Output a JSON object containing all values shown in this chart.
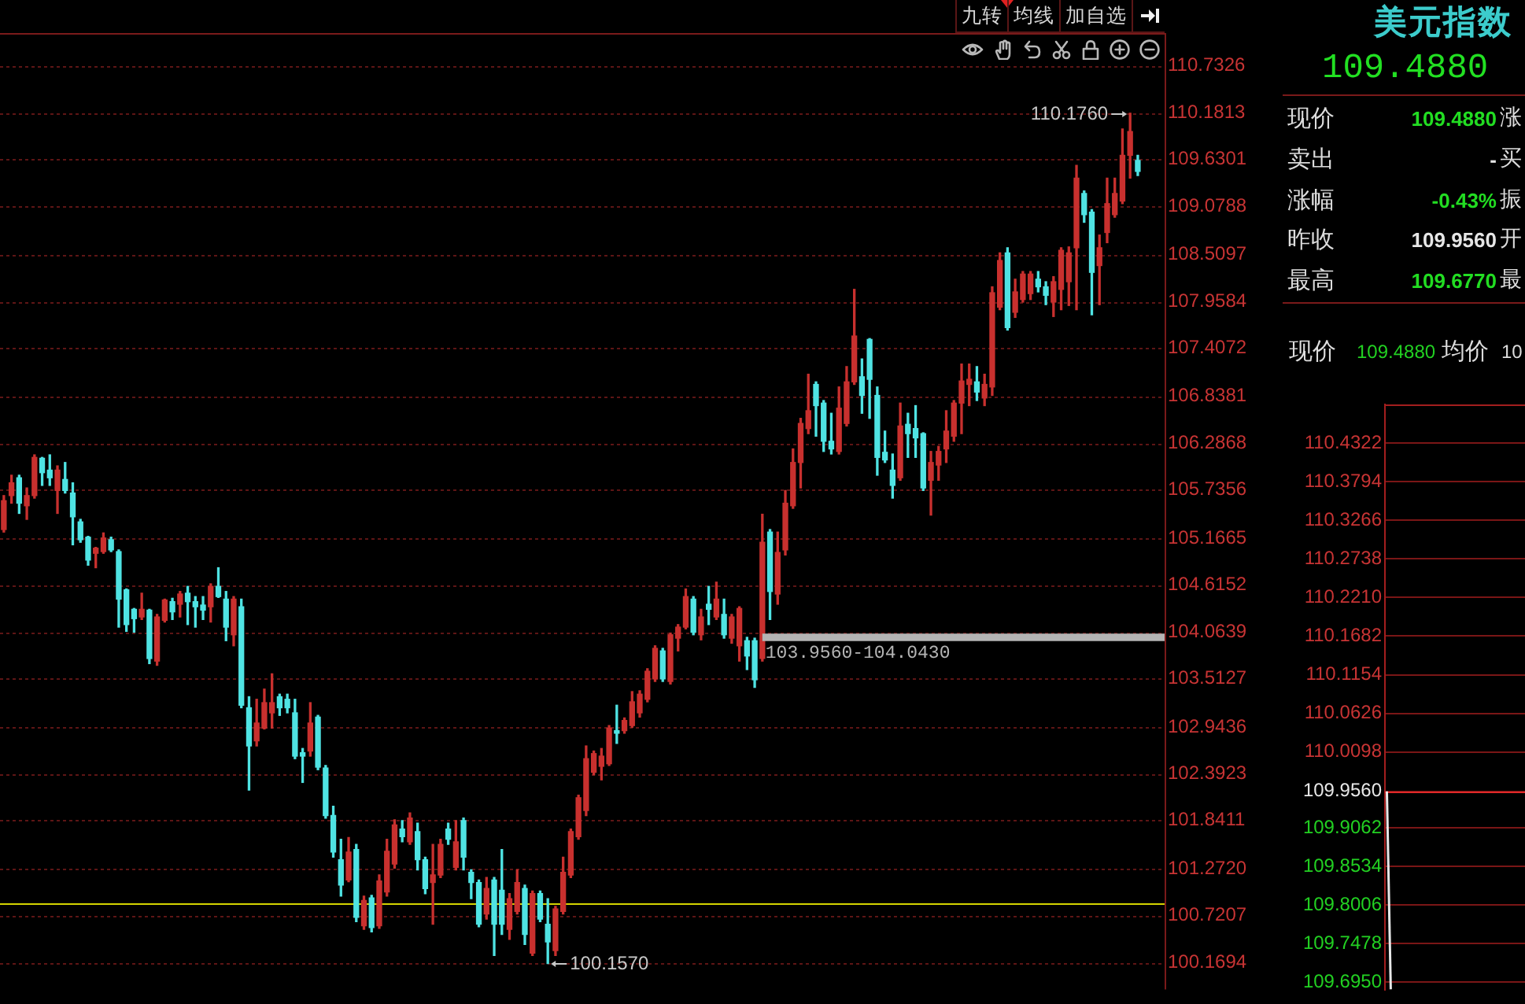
{
  "chart_data": [
    {
      "type": "candlestick",
      "categories": [
        null,
        null,
        null,
        null,
        null,
        null,
        null,
        null,
        null,
        null,
        null,
        null,
        null,
        null,
        null,
        null,
        null,
        null,
        null,
        null,
        null,
        null,
        null,
        null,
        null,
        null,
        null,
        null,
        null,
        null,
        null,
        null,
        null,
        null,
        null,
        null,
        null,
        null,
        null,
        null,
        null,
        null,
        null,
        null,
        null,
        null,
        null,
        null,
        null,
        null,
        null,
        null,
        null,
        null,
        null,
        null,
        null,
        null,
        null,
        null,
        null,
        null,
        null,
        null,
        null,
        null,
        null,
        null,
        null,
        null,
        null,
        null,
        null,
        null,
        null,
        null,
        null,
        null,
        null,
        null,
        null,
        null,
        null,
        null,
        null,
        null,
        null,
        null,
        null,
        null,
        null,
        null,
        null,
        null,
        null,
        null,
        null,
        null,
        null,
        null,
        null,
        null,
        null,
        null,
        null,
        null,
        null,
        null,
        null,
        null,
        null,
        null,
        null,
        null,
        null,
        null,
        null,
        null,
        null,
        null,
        null,
        null,
        null,
        null,
        null,
        null,
        null,
        null,
        null,
        null,
        null,
        null,
        null,
        null,
        null,
        null,
        null,
        null,
        null,
        null,
        null,
        null,
        null,
        null,
        null,
        null,
        null,
        null,
        null,
        null,
        null,
        null
      ],
      "ohlc": [
        [
          105.27,
          105.67,
          105.24,
          105.61
        ],
        [
          105.67,
          105.91,
          105.58,
          105.82
        ],
        [
          105.88,
          105.91,
          105.46,
          105.58
        ],
        [
          105.55,
          105.76,
          105.39,
          105.67
        ],
        [
          105.67,
          106.15,
          105.64,
          106.12
        ],
        [
          106.11,
          106.12,
          105.79,
          105.94
        ],
        [
          105.97,
          106.15,
          105.79,
          105.88
        ],
        [
          105.73,
          106.02,
          105.46,
          105.97
        ],
        [
          105.86,
          106.06,
          105.7,
          105.73
        ],
        [
          105.7,
          105.82,
          105.09,
          105.42
        ],
        [
          105.36,
          105.39,
          105.12,
          105.15
        ],
        [
          105.18,
          105.19,
          104.85,
          104.91
        ],
        [
          104.99,
          105.06,
          104.82,
          105.05
        ],
        [
          105.01,
          105.23,
          104.99,
          105.17
        ],
        [
          105.15,
          105.18,
          105.01,
          105.03
        ],
        [
          105.01,
          105.03,
          104.12,
          104.45
        ],
        [
          104.56,
          104.57,
          104.07,
          104.15
        ],
        [
          104.33,
          104.34,
          104.06,
          104.22
        ],
        [
          104.24,
          104.52,
          104.21,
          104.33
        ],
        [
          104.32,
          104.33,
          103.69,
          103.75
        ],
        [
          103.72,
          104.27,
          103.67,
          104.24
        ],
        [
          104.2,
          104.45,
          104.18,
          104.44
        ],
        [
          104.42,
          104.46,
          104.21,
          104.3
        ],
        [
          104.39,
          104.54,
          104.24,
          104.51
        ],
        [
          104.52,
          104.6,
          104.15,
          104.42
        ],
        [
          104.42,
          104.48,
          104.12,
          104.36
        ],
        [
          104.38,
          104.48,
          104.21,
          104.32
        ],
        [
          104.36,
          104.63,
          104.18,
          104.6
        ],
        [
          104.6,
          104.82,
          104.47,
          104.48
        ],
        [
          104.45,
          104.54,
          103.96,
          104.12
        ],
        [
          104.03,
          104.48,
          103.9,
          104.45
        ],
        [
          104.36,
          104.45,
          103.17,
          103.2
        ],
        [
          103.17,
          103.3,
          102.2,
          102.72
        ],
        [
          102.78,
          103.27,
          102.72,
          102.99
        ],
        [
          102.93,
          103.39,
          102.92,
          103.23
        ],
        [
          103.11,
          103.57,
          102.93,
          103.23
        ],
        [
          103.3,
          103.33,
          103.08,
          103.17
        ],
        [
          103.27,
          103.33,
          103.11,
          103.17
        ],
        [
          103.11,
          103.27,
          102.57,
          102.6
        ],
        [
          102.64,
          102.69,
          102.29,
          102.6
        ],
        [
          102.66,
          103.23,
          102.6,
          102.99
        ],
        [
          103.06,
          103.08,
          102.44,
          102.47
        ],
        [
          102.46,
          102.49,
          101.87,
          101.9
        ],
        [
          101.9,
          102.01,
          101.41,
          101.47
        ],
        [
          101.38,
          101.62,
          100.95,
          101.08
        ],
        [
          101.14,
          101.64,
          101.12,
          101.47
        ],
        [
          101.5,
          101.56,
          100.65,
          100.7
        ],
        [
          100.6,
          100.95,
          100.56,
          100.9
        ],
        [
          100.93,
          100.96,
          100.53,
          100.58
        ],
        [
          100.6,
          101.2,
          100.57,
          101.13
        ],
        [
          101.0,
          101.62,
          100.95,
          101.48
        ],
        [
          101.33,
          101.85,
          101.28,
          101.79
        ],
        [
          101.74,
          101.84,
          101.59,
          101.65
        ],
        [
          101.59,
          101.93,
          101.56,
          101.87
        ],
        [
          101.71,
          101.81,
          101.26,
          101.38
        ],
        [
          101.38,
          101.41,
          100.98,
          101.04
        ],
        [
          101.11,
          101.56,
          100.62,
          101.2
        ],
        [
          101.2,
          101.62,
          101.17,
          101.56
        ],
        [
          101.74,
          101.81,
          101.56,
          101.62
        ],
        [
          101.29,
          101.84,
          101.26,
          101.59
        ],
        [
          101.84,
          101.87,
          101.26,
          101.41
        ],
        [
          101.23,
          101.26,
          100.92,
          101.11
        ],
        [
          101.11,
          101.14,
          100.59,
          100.62
        ],
        [
          100.74,
          101.17,
          100.68,
          101.04
        ],
        [
          101.14,
          101.17,
          100.25,
          100.62
        ],
        [
          101.02,
          101.5,
          100.5,
          100.62
        ],
        [
          100.56,
          100.98,
          100.44,
          100.92
        ],
        [
          100.77,
          101.26,
          100.74,
          101.11
        ],
        [
          101.04,
          101.08,
          100.38,
          100.5
        ],
        [
          100.28,
          101.01,
          100.25,
          100.98
        ],
        [
          100.98,
          101.01,
          100.65,
          100.68
        ],
        [
          100.62,
          100.92,
          100.157,
          100.41
        ],
        [
          100.31,
          100.83,
          100.25,
          100.8
        ],
        [
          100.77,
          101.41,
          100.74,
          101.23
        ],
        [
          101.2,
          101.74,
          101.17,
          101.71
        ],
        [
          101.65,
          102.14,
          101.62,
          102.11
        ],
        [
          101.96,
          102.72,
          101.9,
          102.57
        ],
        [
          102.41,
          102.66,
          102.38,
          102.63
        ],
        [
          102.48,
          102.69,
          102.32,
          102.6
        ],
        [
          102.51,
          102.96,
          102.49,
          102.93
        ],
        [
          102.9,
          103.2,
          102.75,
          102.87
        ],
        [
          102.9,
          103.05,
          102.87,
          103.02
        ],
        [
          102.96,
          103.36,
          102.94,
          103.24
        ],
        [
          103.11,
          103.37,
          103.06,
          103.33
        ],
        [
          103.27,
          103.63,
          103.24,
          103.6
        ],
        [
          103.51,
          103.9,
          103.48,
          103.87
        ],
        [
          103.84,
          103.87,
          103.48,
          103.51
        ],
        [
          103.48,
          104.05,
          103.45,
          104.03
        ],
        [
          103.99,
          104.15,
          103.84,
          104.12
        ],
        [
          104.12,
          104.57,
          104.1,
          104.48
        ],
        [
          104.45,
          104.48,
          104.03,
          104.06
        ],
        [
          104.03,
          104.33,
          103.97,
          104.24
        ],
        [
          104.39,
          104.6,
          104.15,
          104.33
        ],
        [
          104.24,
          104.65,
          104.21,
          104.45
        ],
        [
          104.27,
          104.45,
          103.99,
          104.03
        ],
        [
          103.99,
          104.27,
          103.93,
          104.24
        ],
        [
          103.9,
          104.36,
          103.72,
          104.34
        ],
        [
          103.96,
          104.0,
          103.62,
          103.78
        ],
        [
          103.96,
          103.99,
          103.41,
          103.5
        ],
        [
          103.75,
          105.45,
          103.72,
          105.12
        ],
        [
          105.24,
          105.27,
          104.21,
          104.54
        ],
        [
          104.51,
          105.24,
          104.39,
          105.0
        ],
        [
          105.03,
          105.73,
          104.97,
          105.58
        ],
        [
          105.55,
          106.22,
          105.52,
          106.06
        ],
        [
          106.06,
          106.58,
          105.76,
          106.52
        ],
        [
          106.46,
          107.1,
          106.4,
          106.67
        ],
        [
          106.98,
          107.01,
          106.37,
          106.73
        ],
        [
          106.76,
          106.79,
          106.19,
          106.31
        ],
        [
          106.31,
          106.64,
          106.16,
          106.22
        ],
        [
          106.19,
          106.95,
          106.16,
          106.7
        ],
        [
          106.52,
          107.19,
          106.49,
          107.01
        ],
        [
          107.01,
          108.1,
          106.98,
          107.55
        ],
        [
          107.07,
          107.28,
          106.64,
          106.85
        ],
        [
          107.51,
          107.52,
          106.58,
          107.04
        ],
        [
          106.85,
          106.95,
          105.91,
          106.12
        ],
        [
          106.18,
          106.43,
          106.06,
          106.09
        ],
        [
          105.97,
          106.16,
          105.64,
          105.79
        ],
        [
          105.88,
          106.76,
          105.85,
          106.49
        ],
        [
          106.51,
          106.64,
          106.12,
          106.4
        ],
        [
          106.46,
          106.73,
          106.12,
          106.35
        ],
        [
          106.4,
          106.41,
          105.73,
          105.76
        ],
        [
          105.85,
          106.19,
          105.44,
          106.06
        ],
        [
          106.03,
          106.25,
          105.85,
          106.19
        ],
        [
          106.22,
          106.67,
          106.06,
          106.43
        ],
        [
          106.37,
          106.79,
          106.31,
          106.76
        ],
        [
          106.76,
          107.22,
          106.4,
          107.02
        ],
        [
          106.98,
          107.22,
          106.73,
          107.04
        ],
        [
          107.01,
          107.19,
          106.79,
          106.89
        ],
        [
          106.82,
          107.1,
          106.73,
          106.98
        ],
        [
          106.95,
          108.13,
          106.85,
          108.06
        ],
        [
          107.89,
          108.53,
          107.86,
          108.44
        ],
        [
          108.53,
          108.59,
          107.62,
          107.65
        ],
        [
          107.83,
          108.22,
          107.77,
          108.07
        ],
        [
          107.98,
          108.31,
          107.95,
          108.28
        ],
        [
          108.05,
          108.31,
          107.98,
          108.28
        ],
        [
          108.22,
          108.31,
          108.07,
          108.13
        ],
        [
          108.13,
          108.19,
          107.92,
          108.03
        ],
        [
          107.95,
          108.25,
          107.78,
          108.19
        ],
        [
          108.1,
          108.59,
          107.86,
          108.56
        ],
        [
          108.19,
          108.6,
          107.91,
          108.53
        ],
        [
          108.59,
          109.56,
          107.86,
          109.41
        ],
        [
          109.23,
          109.26,
          108.89,
          108.98
        ],
        [
          109.01,
          109.04,
          107.8,
          108.3
        ],
        [
          108.38,
          108.74,
          107.92,
          108.59
        ],
        [
          108.77,
          109.41,
          108.65,
          109.11
        ],
        [
          108.98,
          109.41,
          108.95,
          109.23
        ],
        [
          109.14,
          109.99,
          109.11,
          109.68
        ],
        [
          109.68,
          110.176,
          109.41,
          109.96
        ],
        [
          109.62,
          109.68,
          109.44,
          109.49
        ],
        null,
        null,
        null
      ],
      "colors": [
        "#c8302e",
        "#c8302e",
        "#4fe3e3",
        "#c8302e",
        "#c8302e",
        "#4fe3e3",
        "#4fe3e3",
        "#c8302e",
        "#4fe3e3",
        "#4fe3e3",
        "#4fe3e3",
        "#4fe3e3",
        "#c8302e",
        "#c8302e",
        "#4fe3e3",
        "#4fe3e3",
        "#4fe3e3",
        "#4fe3e3",
        "#c8302e",
        "#4fe3e3",
        "#c8302e",
        "#c8302e",
        "#4fe3e3",
        "#c8302e",
        "#4fe3e3",
        "#4fe3e3",
        "#4fe3e3",
        "#c8302e",
        "#4fe3e3",
        "#4fe3e3",
        "#c8302e",
        "#4fe3e3",
        "#4fe3e3",
        "#c8302e",
        "#c8302e",
        "#c8302e",
        "#4fe3e3",
        "#4fe3e3",
        "#4fe3e3",
        "#4fe3e3",
        "#c8302e",
        "#4fe3e3",
        "#4fe3e3",
        "#4fe3e3",
        "#4fe3e3",
        "#c8302e",
        "#4fe3e3",
        "#c8302e",
        "#4fe3e3",
        "#c8302e",
        "#c8302e",
        "#c8302e",
        "#4fe3e3",
        "#c8302e",
        "#4fe3e3",
        "#4fe3e3",
        "#c8302e",
        "#c8302e",
        "#4fe3e3",
        "#c8302e",
        "#4fe3e3",
        "#4fe3e3",
        "#4fe3e3",
        "#c8302e",
        "#4fe3e3",
        "#4fe3e3",
        "#c8302e",
        "#c8302e",
        "#4fe3e3",
        "#c8302e",
        "#4fe3e3",
        "#4fe3e3",
        "#c8302e",
        "#c8302e",
        "#c8302e",
        "#c8302e",
        "#c8302e",
        "#c8302e",
        "#c8302e",
        "#c8302e",
        "#4fe3e3",
        "#c8302e",
        "#c8302e",
        "#c8302e",
        "#c8302e",
        "#c8302e",
        "#4fe3e3",
        "#c8302e",
        "#c8302e",
        "#c8302e",
        "#4fe3e3",
        "#c8302e",
        "#4fe3e3",
        "#c8302e",
        "#4fe3e3",
        "#c8302e",
        "#c8302e",
        "#4fe3e3",
        "#4fe3e3",
        "#c8302e",
        "#4fe3e3",
        "#c8302e",
        "#c8302e",
        "#c8302e",
        "#c8302e",
        "#c8302e",
        "#4fe3e3",
        "#4fe3e3",
        "#4fe3e3",
        "#c8302e",
        "#c8302e",
        "#c8302e",
        "#4fe3e3",
        "#4fe3e3",
        "#4fe3e3",
        "#4fe3e3",
        "#4fe3e3",
        "#c8302e",
        "#4fe3e3",
        "#4fe3e3",
        "#4fe3e3",
        "#c8302e",
        "#c8302e",
        "#c8302e",
        "#c8302e",
        "#c8302e",
        "#c8302e",
        "#4fe3e3",
        "#c8302e",
        "#c8302e",
        "#c8302e",
        "#4fe3e3",
        "#c8302e",
        "#c8302e",
        "#c8302e",
        "#4fe3e3",
        "#4fe3e3",
        "#c8302e",
        "#c8302e",
        "#c8302e",
        "#c8302e",
        "#4fe3e3",
        "#4fe3e3",
        "#c8302e",
        "#c8302e",
        "#c8302e",
        "#c8302e",
        "#c8302e",
        "#4fe3e3",
        null,
        null,
        null
      ],
      "ylim": [
        99.85,
        111.12
      ],
      "yticks": [
        110.7326,
        110.1813,
        109.6301,
        109.0788,
        108.5097,
        107.9584,
        107.4072,
        106.8381,
        106.2868,
        105.7356,
        105.1665,
        104.6152,
        104.0639,
        103.5127,
        102.9436,
        102.3923,
        101.8411,
        {
          "value": 101.272,
          "label": "101.2720"
        },
        100.7207,
        100.1694
      ],
      "grid": "y",
      "tick_labels": "y",
      "ref_lines": [
        {
          "axis": "y",
          "value": 100.86,
          "color": "#d4d400"
        }
      ],
      "bands": [
        {
          "axis": "y",
          "from": 103.956,
          "to": 104.043,
          "label": "103.9560-104.0430",
          "color": "#b4b4b4"
        }
      ],
      "annotations": [
        "九转",
        "均线",
        "加自选",
        "110.1760",
        "100.1570"
      ]
    },
    {
      "type": "other",
      "title": "美元指数",
      "annotations": [
        "109.4880",
        "现价",
        "109.4880",
        "涨",
        "卖出",
        "-",
        "买",
        "涨幅",
        "-0.43%",
        "振",
        "昨收",
        "109.9560",
        "开",
        "最高",
        "109.6770",
        "最"
      ]
    },
    {
      "type": "line",
      "categories": [
        null,
        null,
        null,
        null,
        null,
        null,
        null,
        null,
        null,
        null,
        null,
        null,
        null,
        null,
        null,
        null,
        null,
        null,
        null,
        null,
        null,
        null,
        null,
        null,
        null,
        null,
        null,
        null,
        null,
        null,
        null,
        null,
        null,
        null,
        null,
        null
      ],
      "annotations": [
        "现价",
        "109.4880",
        "均价",
        "10"
      ],
      "series": [
        {
          "color": "#e8e8e8",
          "values": [
            109.956,
            109.685,
            null,
            null,
            null,
            null,
            null,
            null,
            null,
            null,
            null,
            null,
            null,
            null,
            null,
            null,
            null,
            null,
            null,
            null,
            null,
            null,
            null,
            null,
            null,
            null,
            null,
            null,
            null,
            null,
            null,
            null,
            null,
            null,
            null,
            null
          ]
        }
      ],
      "ylim": [
        109.685,
        110.485
      ],
      "yticks": [
        110.4322,
        110.3794,
        110.3266,
        110.2738,
        {
          "value": 110.221,
          "label": "110.2210"
        },
        110.1682,
        110.1154,
        110.0626,
        110.0098,
        {
          "value": 109.956,
          "label": "109.9560"
        },
        109.9062,
        109.8534,
        109.8006,
        109.7478,
        {
          "value": 109.695,
          "label": "109.6950"
        }
      ],
      "ref_lines": [
        {
          "axis": "y",
          "value": 109.956,
          "color": "#e02828"
        }
      ],
      "grid": "y",
      "tick_labels": "y"
    }
  ]
}
